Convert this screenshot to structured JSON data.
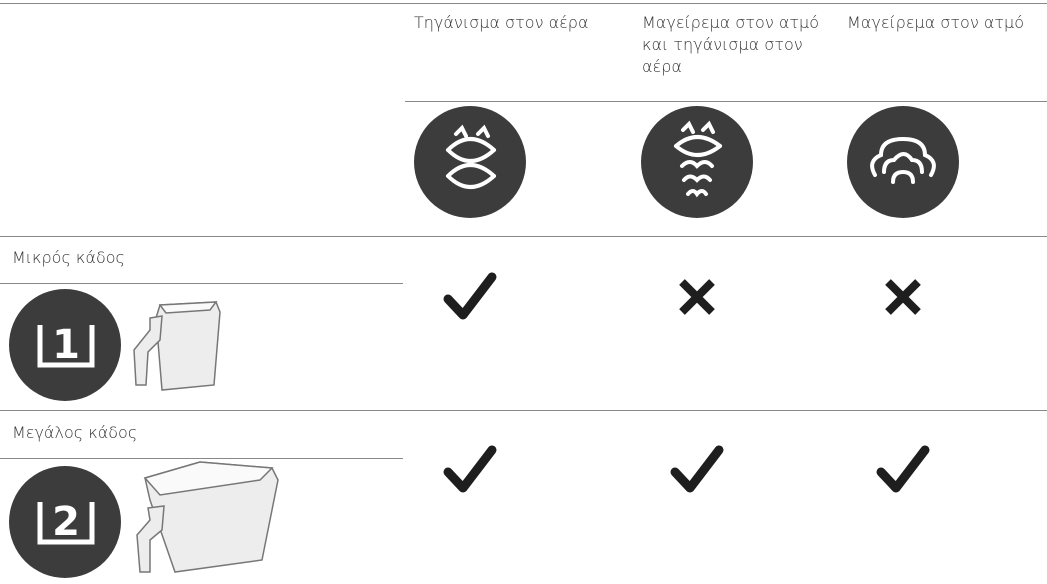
{
  "header": {
    "columns": [
      "Τηγάνισμα στον αέρα",
      "Μαγείρεμα στον ατμό και τηγάνισμα στον αέρα",
      "Μαγείρεμα στον ατμό"
    ]
  },
  "rows": [
    {
      "label": "Μικρός κάδος",
      "badge": "1",
      "cells": [
        true,
        false,
        false
      ]
    },
    {
      "label": "Μεγάλος κάδος",
      "badge": "2",
      "cells": [
        true,
        true,
        true
      ]
    }
  ]
}
